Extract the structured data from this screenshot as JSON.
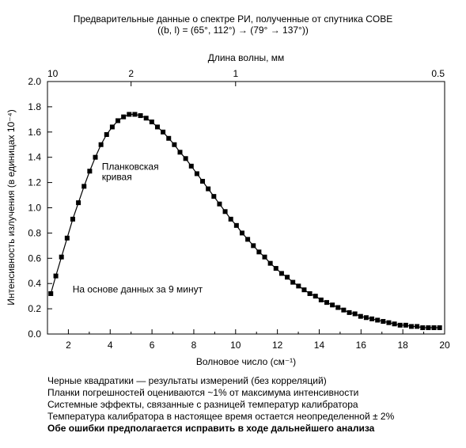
{
  "chart_data": {
    "type": "scatter",
    "title": "Предварительные данные о спектре РИ, полученные от спутника COBE",
    "subtitle": "((b, l) = (65°, 112°) → (79° → 137°))",
    "xlabel": "Волновое число (см⁻¹)",
    "ylabel": "Интенсивность излучения (в единицах 10⁻⁴)",
    "x2label": "Длина волны, мм",
    "xlim": [
      1,
      20
    ],
    "ylim": [
      0,
      2.0
    ],
    "xticks": [
      2,
      4,
      6,
      8,
      10,
      12,
      14,
      16,
      18,
      20
    ],
    "xtick_labels": [
      "2",
      "4",
      "6",
      "8",
      "10",
      "12",
      "14",
      "16",
      "18",
      "20"
    ],
    "yticks": [
      0,
      0.2,
      0.4,
      0.6,
      0.8,
      1.0,
      1.2,
      1.4,
      1.6,
      1.8,
      2.0
    ],
    "ytick_labels": [
      "0.0",
      "0.2",
      "0.4",
      "0.6",
      "0.8",
      "1.0",
      "1.2",
      "1.4",
      "1.6",
      "1.8",
      "2.0"
    ],
    "top_ticks": [
      {
        "label": "10",
        "wavenumber": 1
      },
      {
        "label": "2",
        "wavenumber": 5
      },
      {
        "label": "1",
        "wavenumber": 10
      },
      {
        "label": "0.5",
        "wavenumber": 20
      }
    ],
    "grid": false,
    "annotations": [
      {
        "lines": [
          "Планковская",
          "кривая"
        ],
        "x": 3.6,
        "y": 1.3
      },
      {
        "lines": [
          "На основе данных за 9 минут"
        ],
        "x": 2.2,
        "y": 0.33
      }
    ],
    "series": [
      {
        "x": [
          1.16,
          1.4,
          1.67,
          1.94,
          2.21,
          2.48,
          2.75,
          3.02,
          3.29,
          3.56,
          3.83,
          4.1,
          4.37,
          4.64,
          4.91,
          5.18,
          5.45,
          5.72,
          5.99,
          6.26,
          6.53,
          6.8,
          7.07,
          7.34,
          7.61,
          7.88,
          8.15,
          8.42,
          8.69,
          8.96,
          9.23,
          9.5,
          9.77,
          10.04,
          10.31,
          10.58,
          10.85,
          11.12,
          11.39,
          11.66,
          11.93,
          12.2,
          12.47,
          12.74,
          13.01,
          13.28,
          13.55,
          13.82,
          14.09,
          14.36,
          14.63,
          14.9,
          15.17,
          15.44,
          15.71,
          15.98,
          16.25,
          16.52,
          16.79,
          17.06,
          17.33,
          17.6,
          17.87,
          18.14,
          18.41,
          18.68,
          18.95,
          19.22,
          19.49,
          19.76
        ],
        "y": [
          0.32,
          0.46,
          0.61,
          0.76,
          0.91,
          1.04,
          1.17,
          1.29,
          1.4,
          1.5,
          1.58,
          1.64,
          1.69,
          1.72,
          1.74,
          1.74,
          1.73,
          1.71,
          1.68,
          1.64,
          1.6,
          1.55,
          1.5,
          1.44,
          1.39,
          1.33,
          1.27,
          1.21,
          1.15,
          1.09,
          1.03,
          0.97,
          0.91,
          0.86,
          0.8,
          0.75,
          0.7,
          0.65,
          0.61,
          0.56,
          0.52,
          0.48,
          0.45,
          0.41,
          0.38,
          0.35,
          0.32,
          0.3,
          0.27,
          0.25,
          0.23,
          0.21,
          0.19,
          0.17,
          0.16,
          0.14,
          0.13,
          0.12,
          0.11,
          0.1,
          0.09,
          0.08,
          0.07,
          0.07,
          0.06,
          0.06,
          0.05,
          0.05,
          0.05,
          0.05
        ]
      }
    ]
  },
  "notes": [
    "Черные квадратики — результаты измерений (без корреляций)",
    "Планки погрешностей  оцениваются ~1% от максимума интенсивности",
    "Системные эффекты, связанные с разницей температур калибратора",
    "Температура калибратора в настоящее время остается неопределенной ± 2%",
    "Обе ошибки предполагается исправить в ходе дальнейшего анализа"
  ]
}
